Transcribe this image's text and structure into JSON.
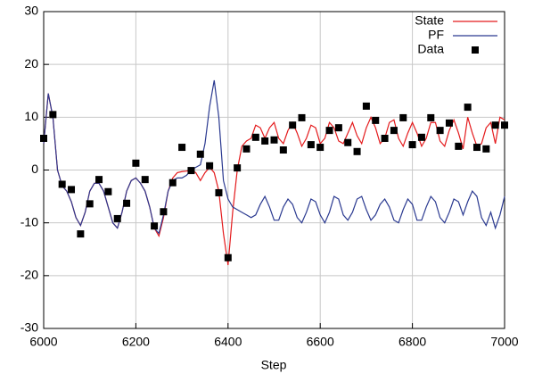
{
  "chart_data": {
    "type": "line",
    "xlabel": "Step",
    "xlim": [
      6000,
      7000
    ],
    "xticks": [
      6000,
      6200,
      6400,
      6600,
      6800,
      7000
    ],
    "ylim": [
      -30,
      30
    ],
    "yticks": [
      -30,
      -20,
      -10,
      0,
      10,
      20,
      30
    ],
    "grid": true,
    "legend": "top-right",
    "x": [
      6000,
      6010,
      6020,
      6030,
      6040,
      6050,
      6060,
      6070,
      6080,
      6090,
      6100,
      6110,
      6120,
      6130,
      6140,
      6150,
      6160,
      6170,
      6180,
      6190,
      6200,
      6210,
      6220,
      6230,
      6240,
      6250,
      6260,
      6270,
      6280,
      6290,
      6300,
      6310,
      6320,
      6330,
      6340,
      6350,
      6360,
      6370,
      6380,
      6390,
      6400,
      6410,
      6420,
      6430,
      6440,
      6450,
      6460,
      6470,
      6480,
      6490,
      6500,
      6510,
      6520,
      6530,
      6540,
      6550,
      6560,
      6570,
      6580,
      6590,
      6600,
      6610,
      6620,
      6630,
      6640,
      6650,
      6660,
      6670,
      6680,
      6690,
      6700,
      6710,
      6720,
      6730,
      6740,
      6750,
      6760,
      6770,
      6780,
      6790,
      6800,
      6810,
      6820,
      6830,
      6840,
      6850,
      6860,
      6870,
      6880,
      6890,
      6900,
      6910,
      6920,
      6930,
      6940,
      6950,
      6960,
      6970,
      6980,
      6990,
      7000
    ],
    "series": [
      {
        "name": "State",
        "type": "line",
        "color": "#e41a1c",
        "values": [
          5,
          14.5,
          10,
          0,
          -3,
          -4,
          -6,
          -9,
          -10.5,
          -8,
          -4,
          -2.5,
          -2.5,
          -4,
          -7,
          -10,
          -11,
          -8,
          -4,
          -2,
          -1.5,
          -2.5,
          -4,
          -7,
          -11,
          -12.5,
          -9,
          -4,
          -1.5,
          -0.5,
          -0.3,
          -0.2,
          0,
          -0.5,
          -2,
          -0.5,
          0.5,
          -0.5,
          -4,
          -12,
          -18,
          -8,
          0,
          4.5,
          5.5,
          6,
          8.5,
          8,
          6,
          8,
          9,
          6,
          5,
          7.5,
          9,
          7,
          4.5,
          6,
          8.5,
          8,
          5,
          6,
          9,
          8,
          5.5,
          5,
          7,
          9,
          6.5,
          5,
          8,
          10,
          8,
          5,
          6,
          9,
          9.5,
          6,
          4.5,
          7,
          9,
          7,
          4.5,
          6,
          9,
          9,
          5.5,
          4.5,
          7.5,
          9.5,
          7,
          4,
          10,
          7,
          4.5,
          5,
          8,
          9,
          5,
          10,
          9.5
        ]
      },
      {
        "name": "PF",
        "type": "line",
        "color": "#2a3990",
        "values": [
          5,
          14.5,
          10,
          0,
          -3,
          -4,
          -6,
          -9,
          -10.5,
          -8,
          -4,
          -2.5,
          -2.5,
          -4,
          -7,
          -10,
          -11,
          -8,
          -4,
          -2,
          -1.5,
          -2.5,
          -4,
          -7,
          -11,
          -12,
          -8.5,
          -4,
          -2,
          -1.5,
          -1.5,
          -1,
          0,
          0.5,
          1,
          5,
          12,
          17,
          10,
          -2,
          -5.5,
          -7,
          -7.5,
          -8,
          -8.5,
          -9,
          -8.5,
          -6.5,
          -5,
          -7,
          -9.5,
          -9.5,
          -7,
          -5.5,
          -6.5,
          -9,
          -10,
          -8,
          -5.5,
          -6,
          -8.5,
          -10,
          -8,
          -5,
          -5.5,
          -8.5,
          -9.5,
          -8,
          -5.5,
          -5,
          -7.5,
          -9.5,
          -8.5,
          -6.5,
          -5.5,
          -7,
          -9.5,
          -10,
          -7.5,
          -5.5,
          -6.5,
          -9.5,
          -9.5,
          -7,
          -5,
          -6,
          -9,
          -10,
          -8,
          -5.5,
          -6,
          -8.5,
          -6,
          -4,
          -5,
          -9,
          -10.5,
          -8,
          -11,
          -8.5,
          -5
        ]
      },
      {
        "name": "Data",
        "type": "scatter",
        "color": "#000000",
        "x": [
          6000,
          6020,
          6040,
          6060,
          6080,
          6100,
          6120,
          6140,
          6160,
          6180,
          6200,
          6220,
          6240,
          6260,
          6280,
          6300,
          6320,
          6340,
          6360,
          6380,
          6400,
          6420,
          6440,
          6460,
          6480,
          6500,
          6520,
          6540,
          6560,
          6580,
          6600,
          6620,
          6640,
          6660,
          6680,
          6700,
          6720,
          6740,
          6760,
          6780,
          6800,
          6820,
          6840,
          6860,
          6880,
          6900,
          6920,
          6940,
          6960,
          6980,
          7000
        ],
        "values": [
          6,
          10.5,
          -2.7,
          -3.7,
          -12.1,
          -6.4,
          -1.8,
          -4.1,
          -9.2,
          -6.3,
          1.3,
          -1.8,
          -10.6,
          -7.9,
          -2.4,
          4.3,
          -0.1,
          3,
          0.8,
          -4.3,
          -16.6,
          0.4,
          4,
          6.2,
          5.5,
          5.7,
          3.8,
          8.5,
          9.9,
          4.8,
          4.3,
          7.5,
          8,
          5.2,
          3.5,
          12.1,
          9.4,
          6,
          7.5,
          9.9,
          4.8,
          6.2,
          9.9,
          7.5,
          8.9,
          4.5,
          11.9,
          4.3,
          4,
          8.5,
          8.5
        ]
      }
    ]
  }
}
